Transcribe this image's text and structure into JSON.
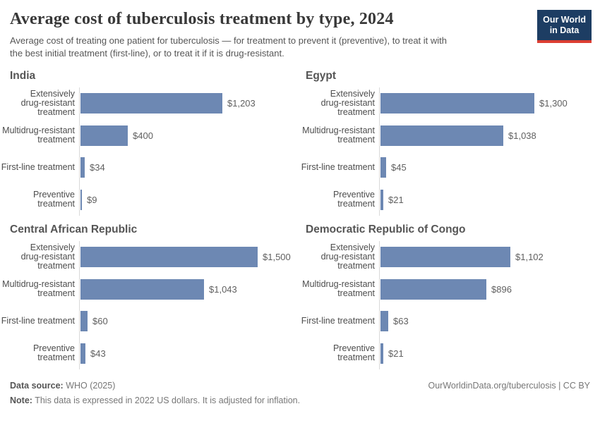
{
  "header": {
    "title": "Average cost of tuberculosis treatment by type, 2024",
    "subtitle": "Average cost of treating one patient for tuberculosis — for treatment to prevent it (preventive), to treat it with\nthe best initial treatment (first-line), or to treat it if it is drug-resistant.",
    "logo": {
      "line1": "Our World",
      "line2": "in Data"
    }
  },
  "style": {
    "bar_color": "#6d88b3",
    "logo_bg": "#1d3d63",
    "logo_stripe": "#dc3e32",
    "axis_line_color": "#d9d9d9"
  },
  "chart_data": [
    {
      "type": "bar",
      "title": "India",
      "categories": [
        "Extensively\ndrug-resistant\ntreatment",
        "Multidrug-resistant\ntreatment",
        "First-line treatment",
        "Preventive\ntreatment"
      ],
      "values": [
        1203,
        400,
        34,
        9
      ],
      "value_labels": [
        "$1,203",
        "$400",
        "$34",
        "$9"
      ],
      "xlabel": "",
      "ylabel": "",
      "unit": "US$",
      "xlim": [
        0,
        1500
      ],
      "grid": false,
      "orientation": "horizontal"
    },
    {
      "type": "bar",
      "title": "Egypt",
      "categories": [
        "Extensively\ndrug-resistant\ntreatment",
        "Multidrug-resistant\ntreatment",
        "First-line treatment",
        "Preventive\ntreatment"
      ],
      "values": [
        1300,
        1038,
        45,
        21
      ],
      "value_labels": [
        "$1,300",
        "$1,038",
        "$45",
        "$21"
      ],
      "xlabel": "",
      "ylabel": "",
      "unit": "US$",
      "xlim": [
        0,
        1500
      ],
      "grid": false,
      "orientation": "horizontal"
    },
    {
      "type": "bar",
      "title": "Central African Republic",
      "categories": [
        "Extensively\ndrug-resistant\ntreatment",
        "Multidrug-resistant\ntreatment",
        "First-line treatment",
        "Preventive\ntreatment"
      ],
      "values": [
        1500,
        1043,
        60,
        43
      ],
      "value_labels": [
        "$1,500",
        "$1,043",
        "$60",
        "$43"
      ],
      "xlabel": "",
      "ylabel": "",
      "unit": "US$",
      "xlim": [
        0,
        1500
      ],
      "grid": false,
      "orientation": "horizontal"
    },
    {
      "type": "bar",
      "title": "Democratic Republic of Congo",
      "categories": [
        "Extensively\ndrug-resistant\ntreatment",
        "Multidrug-resistant\ntreatment",
        "First-line treatment",
        "Preventive\ntreatment"
      ],
      "values": [
        1102,
        896,
        63,
        21
      ],
      "value_labels": [
        "$1,102",
        "$896",
        "$63",
        "$21"
      ],
      "xlabel": "",
      "ylabel": "",
      "unit": "US$",
      "xlim": [
        0,
        1500
      ],
      "grid": false,
      "orientation": "horizontal"
    }
  ],
  "footer": {
    "source_label": "Data source:",
    "source_text": " WHO (2025)",
    "note_label": "Note:",
    "note_text": " This data is expressed in 2022 US dollars. It is adjusted for inflation.",
    "link": "OurWorldinData.org/tuberculosis | CC BY"
  }
}
